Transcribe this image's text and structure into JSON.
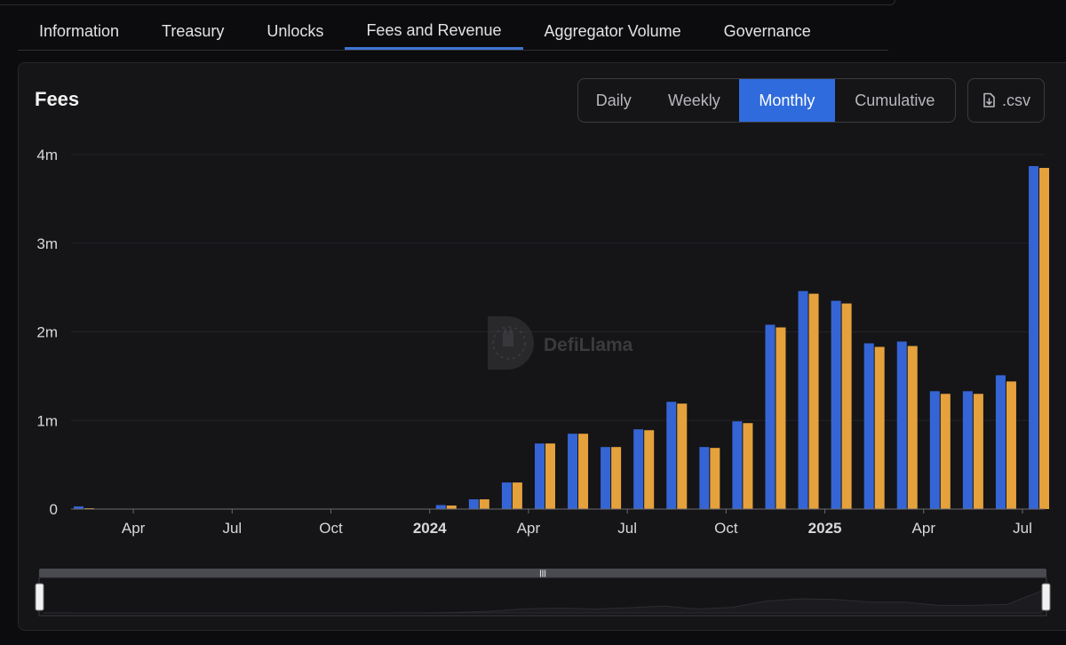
{
  "tabs": [
    {
      "label": "Information",
      "active": false
    },
    {
      "label": "Treasury",
      "active": false
    },
    {
      "label": "Unlocks",
      "active": false
    },
    {
      "label": "Fees and Revenue",
      "active": true
    },
    {
      "label": "Aggregator Volume",
      "active": false
    },
    {
      "label": "Governance",
      "active": false
    }
  ],
  "panel": {
    "title": "Fees",
    "periods": [
      "Daily",
      "Weekly",
      "Monthly",
      "Cumulative"
    ],
    "active_period": "Monthly",
    "csv_label": ".csv"
  },
  "watermark": "DefiLlama",
  "colors": {
    "fees": "#3565d4",
    "revenue": "#e5a13c",
    "accent": "#2f6bdd"
  },
  "chart_data": {
    "type": "bar",
    "ylim": [
      0,
      4000000
    ],
    "yticks": [
      {
        "value": 0,
        "label": "0"
      },
      {
        "value": 1000000,
        "label": "1m"
      },
      {
        "value": 2000000,
        "label": "2m"
      },
      {
        "value": 3000000,
        "label": "3m"
      },
      {
        "value": 4000000,
        "label": "4m"
      }
    ],
    "xticks": [
      {
        "index": 2.0,
        "label": "Apr",
        "bold": false
      },
      {
        "index": 5.0,
        "label": "Jul",
        "bold": false
      },
      {
        "index": 8.0,
        "label": "Oct",
        "bold": false
      },
      {
        "index": 11.0,
        "label": "2024",
        "bold": true
      },
      {
        "index": 14.0,
        "label": "Apr",
        "bold": false
      },
      {
        "index": 17.0,
        "label": "Jul",
        "bold": false
      },
      {
        "index": 20.0,
        "label": "Oct",
        "bold": false
      },
      {
        "index": 23.0,
        "label": "2025",
        "bold": true
      },
      {
        "index": 26.0,
        "label": "Apr",
        "bold": false
      },
      {
        "index": 29.0,
        "label": "Jul",
        "bold": false
      }
    ],
    "categories": [
      "2023-02",
      "2023-03",
      "2023-04",
      "2023-05",
      "2023-06",
      "2023-07",
      "2023-08",
      "2023-09",
      "2023-10",
      "2023-11",
      "2023-12",
      "2024-01",
      "2024-02",
      "2024-03",
      "2024-04",
      "2024-05",
      "2024-06",
      "2024-07",
      "2024-08",
      "2024-09",
      "2024-10",
      "2024-11",
      "2024-12",
      "2025-01",
      "2025-02",
      "2025-03",
      "2025-04",
      "2025-05",
      "2025-06",
      "2025-07"
    ],
    "series": [
      {
        "values": [
          30000,
          5000,
          5000,
          5000,
          5000,
          5000,
          5000,
          5000,
          5000,
          5000,
          5000,
          45000,
          110000,
          300000,
          740000,
          850000,
          700000,
          900000,
          1210000,
          700000,
          990000,
          2080000,
          2460000,
          2350000,
          1870000,
          1890000,
          1330000,
          1330000,
          1510000,
          3870000
        ]
      },
      {
        "values": [
          10000,
          3000,
          3000,
          3000,
          3000,
          3000,
          3000,
          3000,
          3000,
          3000,
          3000,
          40000,
          110000,
          300000,
          740000,
          850000,
          700000,
          890000,
          1190000,
          690000,
          970000,
          2050000,
          2430000,
          2320000,
          1830000,
          1840000,
          1300000,
          1300000,
          1440000,
          3850000
        ]
      }
    ]
  }
}
